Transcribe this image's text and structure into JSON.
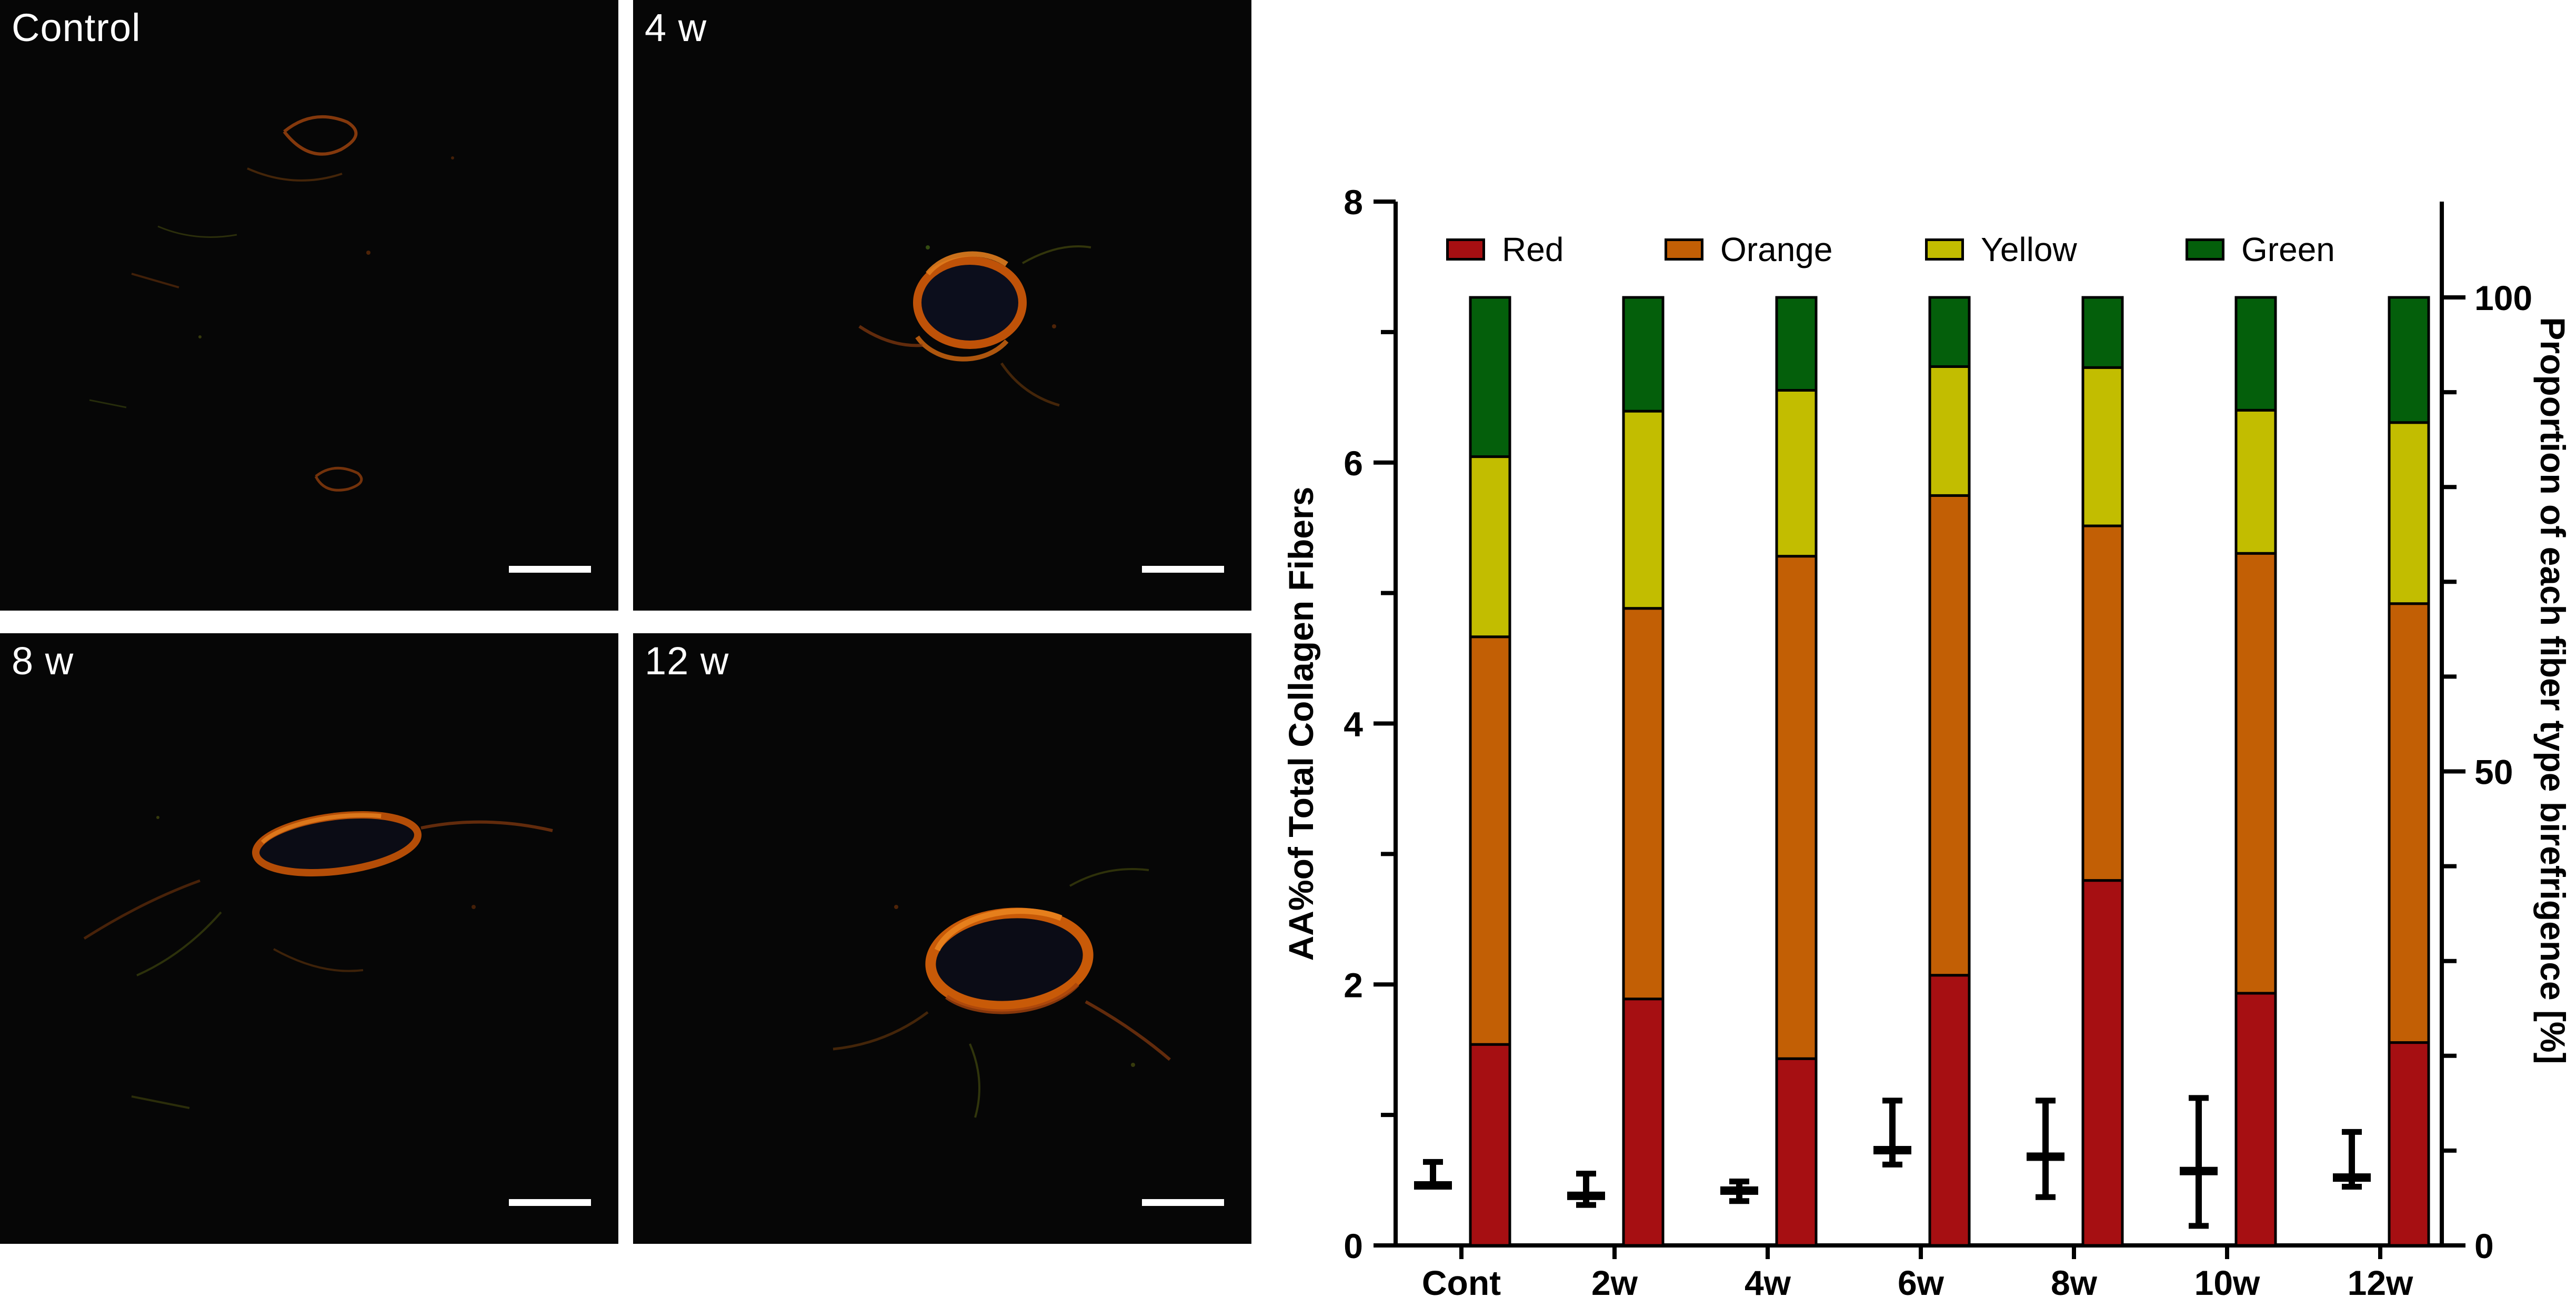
{
  "panels": [
    {
      "label": "Control"
    },
    {
      "label": "4 w"
    },
    {
      "label": "8 w"
    },
    {
      "label": "12 w"
    }
  ],
  "chart_data": {
    "type": "bar",
    "subtype": "stacked-percent-with-error-bars",
    "categories": [
      "Cont",
      "2w",
      "4w",
      "6w",
      "8w",
      "10w",
      "12w"
    ],
    "series": [
      {
        "name": "Red",
        "color": "#A60F12",
        "values": [
          21.2,
          26.0,
          19.7,
          28.5,
          38.5,
          26.6,
          21.4
        ]
      },
      {
        "name": "Orange",
        "color": "#C25F05",
        "values": [
          43.0,
          41.2,
          53.0,
          50.6,
          37.4,
          46.4,
          46.3
        ]
      },
      {
        "name": "Yellow",
        "color": "#C2BD00",
        "values": [
          19.0,
          20.8,
          17.5,
          13.6,
          16.7,
          15.1,
          19.1
        ]
      },
      {
        "name": "Green",
        "color": "#045F0B",
        "values": [
          16.8,
          12.0,
          9.8,
          7.3,
          7.4,
          11.9,
          13.2
        ]
      }
    ],
    "error_bars": {
      "name": "AA% mean with SD",
      "means": [
        0.46,
        0.38,
        0.42,
        0.73,
        0.68,
        0.57,
        0.52
      ],
      "upper": [
        0.64,
        0.55,
        0.49,
        1.11,
        1.11,
        1.13,
        0.87
      ],
      "lower": [
        0.46,
        0.31,
        0.34,
        0.62,
        0.37,
        0.15,
        0.45
      ]
    },
    "left_axis": {
      "label": "AA%of Total Collagen Fibers",
      "min": 0,
      "max": 8,
      "major_ticks": [
        0,
        2,
        4,
        6,
        8
      ],
      "minor_ticks": [
        1,
        3,
        5,
        7
      ]
    },
    "right_axis": {
      "label": "Proportion of each fiber type birefrigence [%]",
      "min": 0,
      "max": 100,
      "major_ticks": [
        0,
        50,
        100
      ],
      "minor_step": 10
    },
    "legend": [
      "Red",
      "Orange",
      "Yellow",
      "Green"
    ],
    "legend_position": "top",
    "grid": false,
    "axis_color": "#000000"
  }
}
